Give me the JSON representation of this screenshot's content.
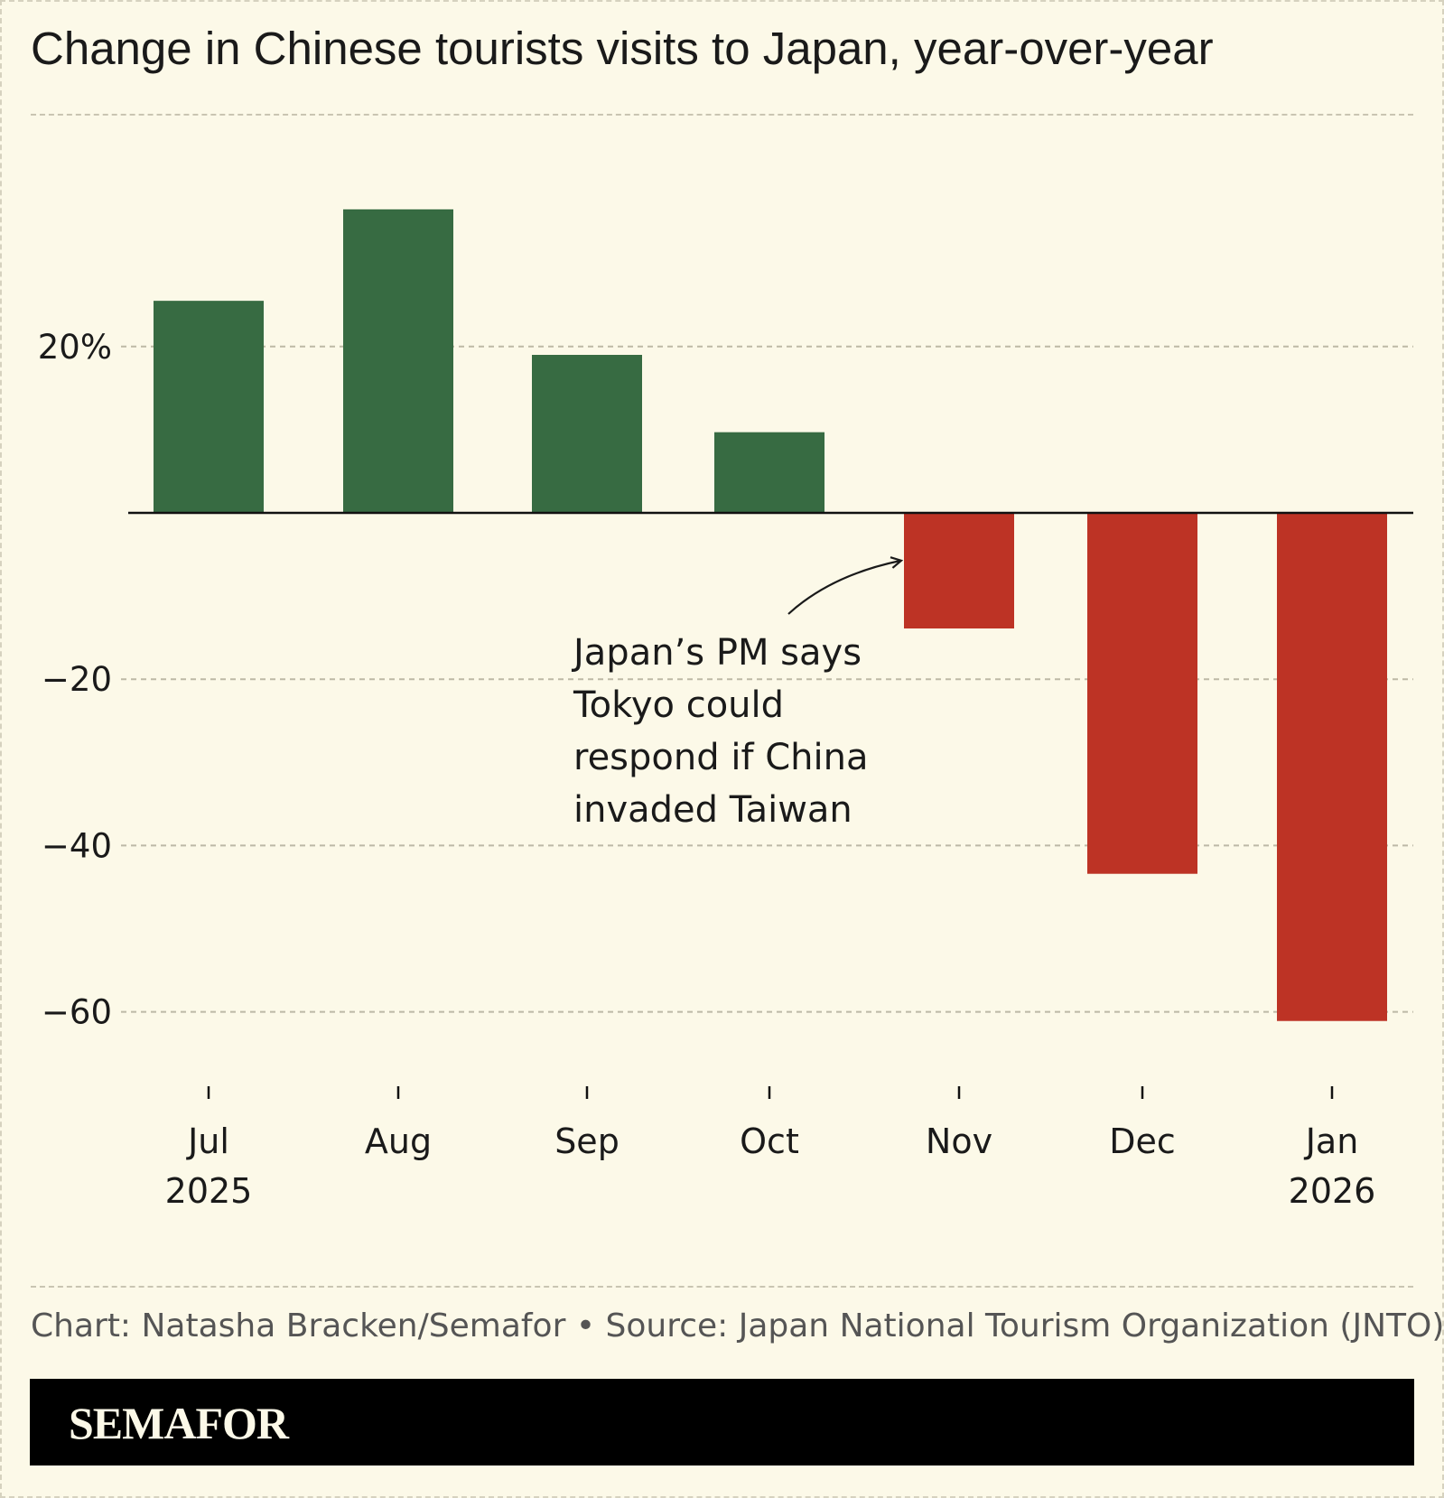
{
  "title": "Change in Chinese tourists visits to Japan, year-over-year",
  "credit": "Chart: Natasha Bracken/Semafor • Source: Japan National Tourism Organization (JNTO)",
  "brand": "SEMAFOR",
  "colors": {
    "positive": "#376b42",
    "negative": "#bd3325",
    "background": "#fcf9e8"
  },
  "chart_data": {
    "type": "bar",
    "categories": [
      "Jul 2025",
      "Aug",
      "Sep",
      "Oct",
      "Nov",
      "Dec",
      "Jan 2026"
    ],
    "tick_labels": [
      [
        "Jul",
        "2025"
      ],
      [
        "Aug"
      ],
      [
        "Sep"
      ],
      [
        "Oct"
      ],
      [
        "Nov"
      ],
      [
        "Dec"
      ],
      [
        "Jan",
        "2026"
      ]
    ],
    "values": [
      25.5,
      36.5,
      19,
      9.7,
      -13.9,
      -43.4,
      -61.1
    ],
    "ylim": [
      -70,
      48
    ],
    "yticks": [
      20,
      -20,
      -40,
      -60
    ],
    "ytick_labels": [
      "20%",
      "−20",
      "−40",
      "−60"
    ],
    "grid": true,
    "annotation": {
      "category": "Nov",
      "lines": [
        "Japan’s PM says",
        "Tokyo could",
        "respond if China",
        "invaded Taiwan"
      ]
    }
  }
}
